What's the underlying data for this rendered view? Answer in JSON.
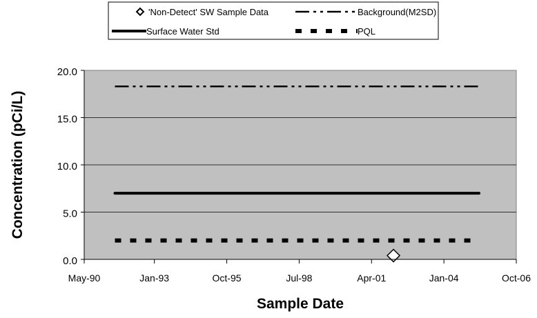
{
  "chart_data": {
    "type": "line",
    "xlabel": "Sample Date",
    "ylabel": "Concentration (pCi/L)",
    "ylim": [
      0,
      20
    ],
    "yticks": [
      "0.0",
      "5.0",
      "10.0",
      "15.0",
      "20.0"
    ],
    "xlim": [
      "1990-05",
      "2006-10"
    ],
    "xticks": [
      "May-90",
      "Jan-93",
      "Oct-95",
      "Jul-98",
      "Apr-01",
      "Jan-04",
      "Oct-06"
    ],
    "grid": true,
    "plot_background": "#c0c0c0",
    "legend_position": "top",
    "series": [
      {
        "name": "'Non-Detect' SW Sample Data",
        "kind": "marker",
        "marker": "diamond-open",
        "points": [
          {
            "x": "2002-02",
            "y": 0.4
          }
        ]
      },
      {
        "name": "Background(M2SD)",
        "kind": "line",
        "style": "dash-dot-dot",
        "points": [
          {
            "x": "1991-07",
            "y": 18.3
          },
          {
            "x": "2005-05",
            "y": 18.3
          }
        ]
      },
      {
        "name": "Surface Water Std",
        "kind": "line",
        "style": "solid",
        "points": [
          {
            "x": "1991-07",
            "y": 7.0
          },
          {
            "x": "2005-05",
            "y": 7.0
          }
        ]
      },
      {
        "name": "PQL",
        "kind": "line",
        "style": "square-dot",
        "points": [
          {
            "x": "1991-07",
            "y": 2.0
          },
          {
            "x": "2005-05",
            "y": 2.0
          }
        ]
      }
    ]
  }
}
